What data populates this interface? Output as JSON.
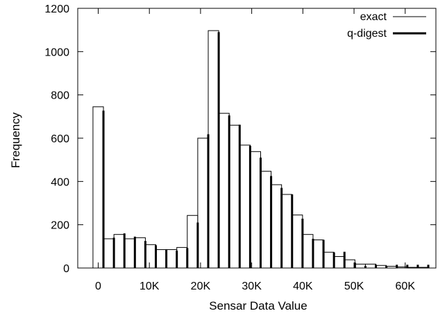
{
  "chart_data": {
    "type": "bar",
    "title": "",
    "xlabel": "Sensar Data Value",
    "ylabel": "Frequency",
    "xlim": [
      -4000,
      66000
    ],
    "ylim": [
      0,
      1200
    ],
    "x_ticks": [
      0,
      10000,
      20000,
      30000,
      40000,
      50000,
      60000
    ],
    "x_tick_labels": [
      "0",
      "10K",
      "20K",
      "30K",
      "40K",
      "50K",
      "60K"
    ],
    "y_ticks": [
      0,
      200,
      400,
      600,
      800,
      1000,
      1200
    ],
    "y_tick_labels": [
      "0",
      "200",
      "400",
      "600",
      "800",
      "1000",
      "1200"
    ],
    "bin_width": 2048,
    "x": [
      0,
      2048,
      4096,
      6144,
      8192,
      10240,
      12288,
      14336,
      16384,
      18432,
      20480,
      22528,
      24576,
      26624,
      28672,
      30720,
      32768,
      34816,
      36864,
      38912,
      40960,
      43008,
      45056,
      47104,
      49152,
      51200,
      53248,
      55296,
      57344,
      59392,
      61440,
      63488
    ],
    "legend": {
      "position": "top-right",
      "entries": [
        "exact",
        "q-digest"
      ]
    },
    "series": [
      {
        "name": "exact",
        "style": "outlined-bar",
        "values": [
          745,
          135,
          155,
          135,
          140,
          108,
          85,
          85,
          95,
          243,
          600,
          1097,
          715,
          660,
          568,
          538,
          447,
          385,
          340,
          245,
          155,
          130,
          73,
          53,
          38,
          18,
          18,
          12,
          8,
          5,
          3,
          3
        ]
      },
      {
        "name": "q-digest",
        "style": "thick-line",
        "values": [
          727,
          140,
          160,
          145,
          125,
          105,
          85,
          80,
          92,
          210,
          618,
          1090,
          705,
          662,
          565,
          510,
          425,
          370,
          340,
          228,
          135,
          130,
          72,
          75,
          25,
          10,
          15,
          10,
          15,
          15,
          15,
          15
        ]
      }
    ]
  }
}
